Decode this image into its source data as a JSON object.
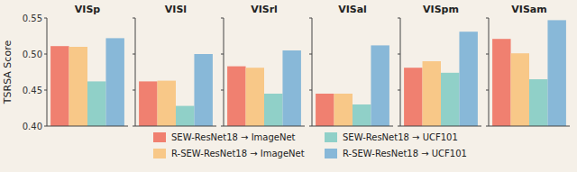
{
  "chart_data": {
    "type": "bar",
    "categories": [
      "VISp",
      "VISl",
      "VISrl",
      "VISal",
      "VISpm",
      "VISam"
    ],
    "series": [
      {
        "name": "SEW-ResNet18 → ImageNet",
        "color": "#F08070",
        "values": [
          0.511,
          0.462,
          0.483,
          0.445,
          0.481,
          0.521
        ]
      },
      {
        "name": "R-SEW-ResNet18 → ImageNet",
        "color": "#F8C888",
        "values": [
          0.51,
          0.463,
          0.481,
          0.445,
          0.49,
          0.501
        ]
      },
      {
        "name": "SEW-ResNet18 → UCF101",
        "color": "#90D0C8",
        "values": [
          0.462,
          0.428,
          0.445,
          0.43,
          0.474,
          0.465
        ]
      },
      {
        "name": "R-SEW-ResNet18 → UCF101",
        "color": "#88B8D8",
        "values": [
          0.522,
          0.5,
          0.505,
          0.512,
          0.531,
          0.547
        ]
      }
    ],
    "ylim": [
      0.4,
      0.55
    ],
    "yticks": [
      {
        "value": 0.4,
        "label": "0.40"
      },
      0.45,
      {
        "value": 0.5,
        "label": "0.50"
      },
      0.55
    ],
    "ylabel": "TSRSA Score",
    "legend": "bottom",
    "grid": false
  }
}
